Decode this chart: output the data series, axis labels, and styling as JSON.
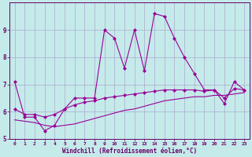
{
  "xlabel": "Windchill (Refroidissement éolien,°C)",
  "bg_color": "#c5eaea",
  "line_color": "#990099",
  "grid_color": "#aaaacc",
  "axis_color": "#660066",
  "text_color": "#660066",
  "xlim": [
    -0.5,
    23.5
  ],
  "ylim": [
    5.0,
    10.0
  ],
  "yticks": [
    5,
    6,
    7,
    8,
    9
  ],
  "xticks": [
    0,
    1,
    2,
    3,
    4,
    5,
    6,
    7,
    8,
    9,
    10,
    11,
    12,
    13,
    14,
    15,
    16,
    17,
    18,
    19,
    20,
    21,
    22,
    23
  ],
  "main_line": [
    7.1,
    5.8,
    5.8,
    5.3,
    5.5,
    6.1,
    6.5,
    6.5,
    6.5,
    9.0,
    8.7,
    7.6,
    9.0,
    7.5,
    9.6,
    9.5,
    8.7,
    8.0,
    7.4,
    6.8,
    6.8,
    6.3,
    7.1,
    6.8
  ],
  "line2": [
    6.1,
    5.9,
    5.9,
    5.8,
    5.9,
    6.1,
    6.25,
    6.35,
    6.4,
    6.5,
    6.55,
    6.6,
    6.65,
    6.7,
    6.75,
    6.8,
    6.8,
    6.8,
    6.8,
    6.75,
    6.8,
    6.5,
    6.85,
    6.8
  ],
  "line3": [
    5.7,
    5.65,
    5.6,
    5.5,
    5.45,
    5.5,
    5.55,
    5.65,
    5.75,
    5.85,
    5.95,
    6.05,
    6.1,
    6.2,
    6.3,
    6.4,
    6.45,
    6.5,
    6.55,
    6.55,
    6.6,
    6.6,
    6.65,
    6.7
  ]
}
